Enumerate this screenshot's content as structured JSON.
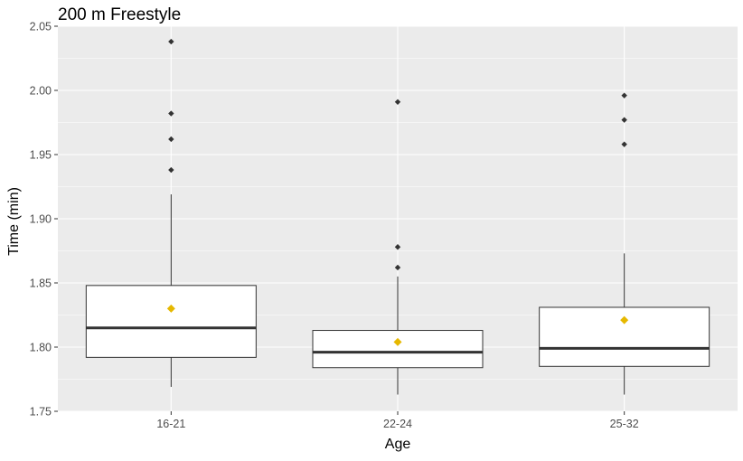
{
  "chart_data": {
    "type": "box",
    "title": "200 m Freestyle",
    "xlabel": "Age",
    "ylabel": "Time (min)",
    "ylim": [
      1.75,
      2.05
    ],
    "yticks": [
      "1.75",
      "1.80",
      "1.85",
      "1.90",
      "1.95",
      "2.00",
      "2.05"
    ],
    "categories": [
      "16-21",
      "22-24",
      "25-32"
    ],
    "boxes": [
      {
        "category": "16-21",
        "whisker_low": 1.769,
        "q1": 1.792,
        "median": 1.815,
        "q3": 1.848,
        "whisker_high": 1.919,
        "mean": 1.83,
        "outliers": [
          1.938,
          1.962,
          1.982,
          2.038
        ]
      },
      {
        "category": "22-24",
        "whisker_low": 1.763,
        "q1": 1.784,
        "median": 1.796,
        "q3": 1.813,
        "whisker_high": 1.855,
        "mean": 1.804,
        "outliers": [
          1.862,
          1.878,
          1.991
        ]
      },
      {
        "category": "25-32",
        "whisker_low": 1.763,
        "q1": 1.785,
        "median": 1.799,
        "q3": 1.831,
        "whisker_high": 1.873,
        "mean": 1.821,
        "outliers": [
          1.958,
          1.977,
          1.996
        ]
      }
    ],
    "grid": true,
    "legend": "none",
    "colors": {
      "panel": "#ebebeb",
      "grid": "#ffffff",
      "box_fill": "#ffffff",
      "box_line": "#333333",
      "outlier": "#333333",
      "mean": "#e6b800"
    }
  }
}
